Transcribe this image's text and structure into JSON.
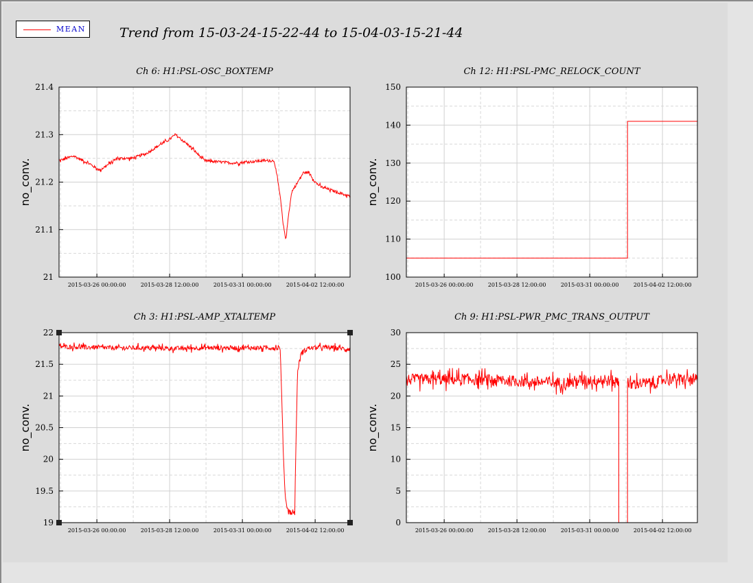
{
  "window": {
    "title": "Trend from 15-03-24-15-22-44 to 15-04-03-15-21-44"
  },
  "legend": {
    "label": "MEAN",
    "color": "#ff0000"
  },
  "colors": {
    "series": "#ff0000",
    "plot_background": "#ffffff",
    "canvas_background": "#dcdcdc",
    "grid": "#cccccc"
  },
  "chart_data": [
    {
      "type": "line",
      "title": "Ch 6: H1:PSL-OSC_BOXTEMP",
      "ylabel": "no_conv.",
      "ylim": [
        21,
        21.4
      ],
      "yticks": [
        "21",
        "21.1",
        "21.2",
        "21.3",
        "21.4"
      ],
      "xticks": [
        "2015-03-26 00:00:00",
        "2015-03-28 12:00:00",
        "2015-03-31 00:00:00",
        "2015-04-02 12:00:00"
      ],
      "grid": true,
      "series": [
        {
          "color": "#ff0000",
          "noise": 0.012,
          "x": [
            0,
            0.05,
            0.1,
            0.14,
            0.2,
            0.25,
            0.3,
            0.35,
            0.38,
            0.4,
            0.45,
            0.5,
            0.6,
            0.7,
            0.74,
            0.76,
            0.77,
            0.78,
            0.79,
            0.8,
            0.82,
            0.84,
            0.86,
            0.88,
            0.9,
            0.95,
            1.0
          ],
          "values": [
            21.245,
            21.255,
            21.24,
            21.225,
            21.25,
            21.25,
            21.26,
            21.28,
            21.29,
            21.3,
            21.275,
            21.245,
            21.24,
            21.245,
            21.245,
            21.17,
            21.11,
            21.08,
            21.14,
            21.18,
            21.2,
            21.22,
            21.22,
            21.2,
            21.19,
            21.18,
            21.17
          ]
        }
      ]
    },
    {
      "type": "line",
      "title": "Ch 12: H1:PSL-PMC_RELOCK_COUNT",
      "ylabel": "no_conv.",
      "ylim": [
        100,
        150
      ],
      "yticks": [
        "100",
        "110",
        "120",
        "130",
        "140",
        "150"
      ],
      "xticks": [
        "2015-03-26 00:00:00",
        "2015-03-28 12:00:00",
        "2015-03-31 00:00:00",
        "2015-04-02 12:00:00"
      ],
      "grid": true,
      "series": [
        {
          "color": "#ff0000",
          "noise": 0,
          "step": true,
          "x": [
            0,
            0.76,
            0.76,
            1.0
          ],
          "values": [
            105,
            105,
            141,
            141
          ]
        }
      ]
    },
    {
      "type": "line",
      "title": "Ch 3: H1:PSL-AMP_XTALTEMP",
      "ylabel": "no_conv.",
      "ylim": [
        19,
        22
      ],
      "yticks": [
        "19",
        "19.5",
        "20",
        "20.5",
        "21",
        "21.5",
        "22"
      ],
      "xticks": [
        "2015-03-26 00:00:00",
        "2015-03-28 12:00:00",
        "2015-03-31 00:00:00",
        "2015-04-02 12:00:00"
      ],
      "grid": true,
      "series": [
        {
          "color": "#ff0000",
          "noise": 0.02,
          "x": [
            0,
            0.1,
            0.2,
            0.3,
            0.4,
            0.5,
            0.6,
            0.7,
            0.76,
            0.77,
            0.775,
            0.78,
            0.79,
            0.8,
            0.81,
            0.815,
            0.82,
            0.83,
            0.85,
            0.9,
            0.95,
            1.0
          ],
          "values": [
            21.78,
            21.77,
            21.76,
            21.76,
            21.75,
            21.76,
            21.76,
            21.76,
            21.76,
            20.2,
            19.6,
            19.3,
            19.18,
            19.14,
            19.18,
            20.5,
            21.4,
            21.65,
            21.75,
            21.77,
            21.76,
            21.74
          ]
        }
      ]
    },
    {
      "type": "line",
      "title": "Ch 9: H1:PSL-PWR_PMC_TRANS_OUTPUT",
      "ylabel": "no_conv.",
      "ylim": [
        0,
        30
      ],
      "yticks": [
        "0",
        "5",
        "10",
        "15",
        "20",
        "25",
        "30"
      ],
      "xticks": [
        "2015-03-26 00:00:00",
        "2015-03-28 12:00:00",
        "2015-03-31 00:00:00",
        "2015-04-02 12:00:00"
      ],
      "grid": true,
      "series": [
        {
          "color": "#ff0000",
          "noise": 0.05,
          "x": [
            0,
            0.1,
            0.18,
            0.2,
            0.25,
            0.3,
            0.35,
            0.4,
            0.45,
            0.5,
            0.55,
            0.6,
            0.62,
            0.7,
            0.72,
            0.73,
            0.73,
            0.76,
            0.76,
            0.77,
            0.78,
            0.8,
            0.85,
            0.9,
            0.95,
            1.0
          ],
          "values": [
            22.6,
            22.6,
            22.6,
            22.7,
            22.6,
            22.5,
            22.4,
            22.3,
            22.2,
            22.1,
            22.1,
            22.5,
            22.5,
            22.4,
            22.3,
            22.3,
            0,
            0,
            22.4,
            21.5,
            22.0,
            22.0,
            22.0,
            22.8,
            22.6,
            22.6
          ]
        }
      ]
    }
  ]
}
